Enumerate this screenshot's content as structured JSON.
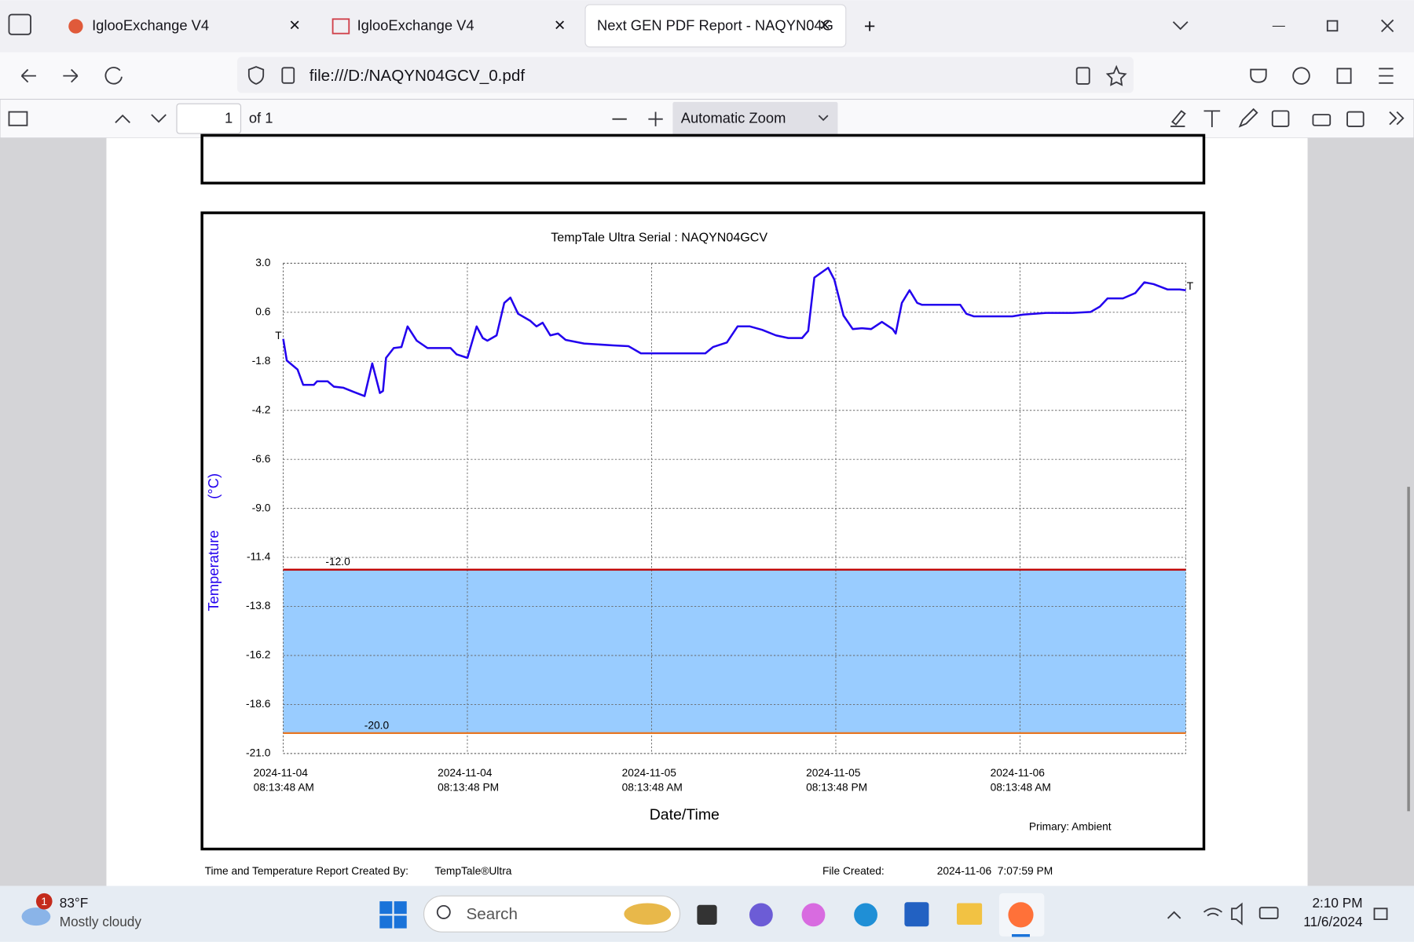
{
  "browser": {
    "tabs": [
      "IglooExchange V4",
      "IglooExchange V4",
      "Next GEN PDF Report - NAQYN04G"
    ],
    "url": "file:///D:/NAQYN04GCV_0.pdf"
  },
  "pdf_toolbar": {
    "page": "1",
    "of": "of 1",
    "zoom": "Automatic Zoom"
  },
  "chart_data": {
    "type": "line",
    "title": "TempTale Ultra  Serial : NAQYN04GCV",
    "x_label": "Date/Time",
    "y_label": "Temperature",
    "y_unit": "(°C)",
    "note": "Primary: Ambient",
    "start_marker": "T",
    "end_marker": "T",
    "xlim": [
      "2024-11-04T08:13:48",
      "2024-11-06T19:02:00"
    ],
    "xticks": [
      {
        "value": "2024-11-04T08:13:48",
        "label": "2024-11-04 08:13:48 AM"
      },
      {
        "value": "2024-11-04T20:13:48",
        "label": "2024-11-04 08:13:48 PM"
      },
      {
        "value": "2024-11-05T08:13:48",
        "label": "2024-11-05 08:13:48 AM"
      },
      {
        "value": "2024-11-05T20:13:48",
        "label": "2024-11-05 08:13:48 PM"
      },
      {
        "value": "2024-11-06T08:13:48",
        "label": "2024-11-06 08:13:48 AM"
      }
    ],
    "ylim": [
      -21,
      3
    ],
    "yticks": [
      {
        "value": 3,
        "label": "3.0"
      },
      0.6,
      -1.8,
      -4.2,
      -6.6,
      {
        "value": -9,
        "label": "-9.0"
      },
      -11.4,
      -13.8,
      -16.2,
      -18.6,
      {
        "value": -21,
        "label": "-21.0"
      }
    ],
    "grid": true,
    "limits": [
      {
        "value": -12,
        "label": "-12.0",
        "color": "#c00000"
      },
      {
        "value": -20,
        "label": "-20.0",
        "color": "#e87722"
      }
    ],
    "band_color": "#99ccff",
    "x": [
      "2024-11-04T08:14",
      "2024-11-04T08:28",
      "2024-11-04T09:10",
      "2024-11-04T09:32",
      "2024-11-04T10:14",
      "2024-11-04T10:26",
      "2024-11-04T11:08",
      "2024-11-04T11:32",
      "2024-11-04T12:08",
      "2024-11-04T12:50",
      "2024-11-04T13:32",
      "2024-11-04T14:02",
      "2024-11-04T14:32",
      "2024-11-04T14:44",
      "2024-11-04T14:56",
      "2024-11-04T15:26",
      "2024-11-04T15:56",
      "2024-11-04T16:20",
      "2024-11-04T16:56",
      "2024-11-04T17:38",
      "2024-11-04T19:08",
      "2024-11-04T19:32",
      "2024-11-04T20:14",
      "2024-11-04T20:50",
      "2024-11-04T21:14",
      "2024-11-04T21:32",
      "2024-11-04T22:08",
      "2024-11-04T22:38",
      "2024-11-04T23:02",
      "2024-11-04T23:32",
      "2024-11-05T00:20",
      "2024-11-05T00:44",
      "2024-11-05T01:08",
      "2024-11-05T01:38",
      "2024-11-05T02:08",
      "2024-11-05T02:38",
      "2024-11-05T03:50",
      "2024-11-05T05:44",
      "2024-11-05T06:44",
      "2024-11-05T07:32",
      "2024-11-05T11:44",
      "2024-11-05T12:14",
      "2024-11-05T13:08",
      "2024-11-05T13:50",
      "2024-11-05T14:38",
      "2024-11-05T15:26",
      "2024-11-05T16:20",
      "2024-11-05T17:08",
      "2024-11-05T18:02",
      "2024-11-05T18:26",
      "2024-11-05T18:50",
      "2024-11-05T19:44",
      "2024-11-05T20:08",
      "2024-11-05T20:44",
      "2024-11-05T21:20",
      "2024-11-05T21:56",
      "2024-11-05T22:32",
      "2024-11-05T23:14",
      "2024-11-05T23:56",
      "2024-11-06T00:08",
      "2024-11-06T00:32",
      "2024-11-06T01:02",
      "2024-11-06T01:32",
      "2024-11-06T01:50",
      "2024-11-06T04:20",
      "2024-11-06T04:44",
      "2024-11-06T05:14",
      "2024-11-06T07:44",
      "2024-11-06T08:26",
      "2024-11-06T09:56",
      "2024-11-06T11:38",
      "2024-11-06T12:50",
      "2024-11-06T13:26",
      "2024-11-06T13:56",
      "2024-11-06T14:56",
      "2024-11-06T15:44",
      "2024-11-06T16:20",
      "2024-11-06T16:56",
      "2024-11-06T17:50",
      "2024-11-06T18:38",
      "2024-11-06T19:02"
    ],
    "series": [
      {
        "name": "Ambient",
        "color": "#2200ee",
        "values": [
          -0.7,
          -1.76,
          -2.2,
          -2.95,
          -2.95,
          -2.78,
          -2.78,
          -3.04,
          -3.09,
          -3.3,
          -3.5,
          -1.9,
          -3.35,
          -3.25,
          -1.63,
          -1.15,
          -1.1,
          -0.09,
          -0.79,
          -1.15,
          -1.15,
          -1.46,
          -1.63,
          -0.09,
          -0.66,
          -0.79,
          -0.53,
          1.06,
          1.32,
          0.53,
          0.18,
          -0.09,
          0.09,
          -0.53,
          -0.44,
          -0.75,
          -0.93,
          -1.02,
          -1.06,
          -1.41,
          -1.41,
          -1.1,
          -0.88,
          -0.09,
          -0.09,
          -0.26,
          -0.53,
          -0.66,
          -0.66,
          -0.31,
          2.3,
          2.78,
          2.2,
          0.44,
          -0.22,
          -0.18,
          -0.22,
          0.13,
          -0.22,
          -0.44,
          1.06,
          1.68,
          1.06,
          0.97,
          0.97,
          0.53,
          0.4,
          0.4,
          0.49,
          0.57,
          0.57,
          0.62,
          0.88,
          1.28,
          1.28,
          1.54,
          2.07,
          1.98,
          1.72,
          1.72,
          1.68
        ]
      }
    ]
  },
  "report_footer": {
    "created_by": "Time and Temperature Report Created By:",
    "product": "TempTale®Ultra",
    "file_created_label": "File Created:",
    "file_created": "2024-11-06  7:07:59 PM"
  },
  "taskbar": {
    "badge": "1",
    "weather_temp": "83°F",
    "weather_desc": "Mostly cloudy",
    "search": "Search",
    "time": "2:10 PM",
    "date": "11/6/2024"
  }
}
